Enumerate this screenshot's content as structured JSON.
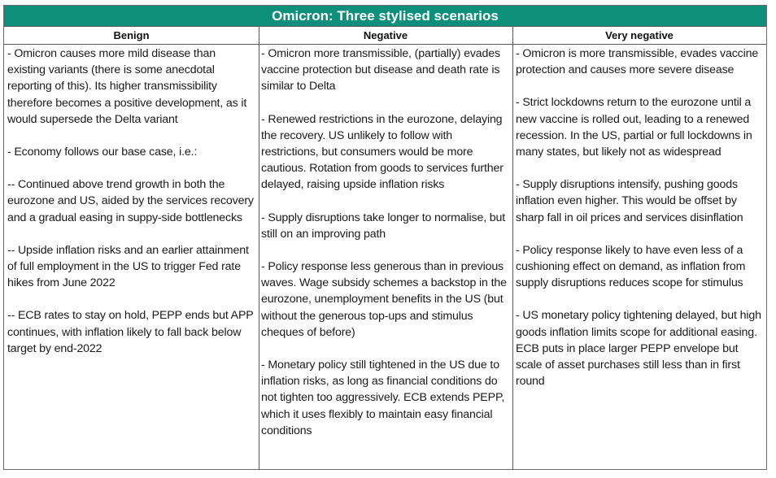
{
  "title": "Omicron: Three stylised scenarios",
  "colors": {
    "title_background": "#0d8f7b",
    "title_text": "#ffffff",
    "border": "#5a5a5a"
  },
  "columns": [
    {
      "header": "Benign",
      "paragraphs": [
        "- Omicron causes more mild disease than existing variants (there is some anecdotal reporting of this). Its higher transmissibility therefore becomes a positive development, as it would supersede the Delta variant",
        "- Economy follows our base case, i.e.:",
        "-- Continued above trend growth in both the eurozone and US, aided by the services recovery and a gradual easing in suppy-side bottlenecks",
        "-- Upside inflation risks and an earlier attainment of full employment in the US to trigger Fed rate hikes from June 2022",
        "-- ECB rates to stay on hold, PEPP ends but APP continues, with inflation likely to fall back below target by end-2022"
      ]
    },
    {
      "header": "Negative",
      "paragraphs": [
        "- Omicron more transmissible, (partially) evades vaccine protection but disease and death rate is similar to Delta",
        "- Renewed restrictions in the eurozone, delaying the recovery. US unlikely to follow with restrictions, but consumers would be more cautious. Rotation from goods to services further delayed, raising upside inflation risks",
        "- Supply disruptions take longer to normalise, but still on an improving path",
        "- Policy response less generous than in previous waves. Wage subsidy schemes a backstop in the eurozone, unemployment benefits in the US (but without the generous top-ups and stimulus cheques of before)",
        "- Monetary policy still tightened in the US due to inflation risks, as long as financial conditions do not tighten too aggressively. ECB extends PEPP, which it uses flexibly to maintain easy financial conditions"
      ]
    },
    {
      "header": "Very negative",
      "paragraphs": [
        "- Omicron is more transmissible, evades vaccine protection and causes more severe disease",
        "- Strict lockdowns return to the eurozone until a new vaccine is rolled out, leading to a renewed recession. In the US, partial or full lockdowns in many states, but likely not as widespread",
        "- Supply disruptions intensify, pushing goods inflation even higher. This would be offset by sharp fall in oil prices and services disinflation",
        "- Policy response likely to have even less of a cushioning effect on demand, as inflation from supply disruptions reduces scope for stimulus",
        "- US monetary policy tightening delayed, but high goods inflation limits scope for additional easing. ECB puts in place larger PEPP envelope but scale of asset purchases still less than in first round"
      ]
    }
  ]
}
